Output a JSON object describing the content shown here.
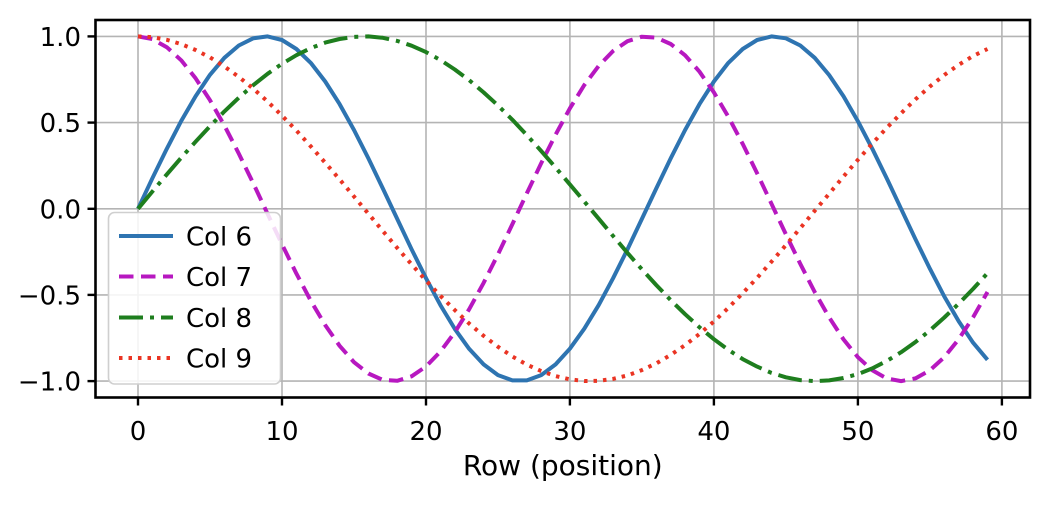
{
  "chart_data": {
    "type": "line",
    "title": "",
    "xlabel": "Row (position)",
    "ylabel": "",
    "grid": true,
    "xlim": [
      -2.95,
      61.95
    ],
    "ylim": [
      -1.095,
      1.095
    ],
    "xticks": [
      0,
      10,
      20,
      30,
      40,
      50,
      60
    ],
    "xtick_labels": [
      "0",
      "10",
      "20",
      "30",
      "40",
      "50",
      "60"
    ],
    "yticks": [
      -1.0,
      -0.5,
      0.0,
      0.5,
      1.0
    ],
    "ytick_labels": [
      "−1.0",
      "−0.5",
      "0.0",
      "0.5",
      "1.0"
    ],
    "grid_color": "#b4b4b4",
    "axis_color": "#000000",
    "legend": {
      "location": "lower left",
      "border_color": "#cfcfcf",
      "entries": [
        "Col 6",
        "Col 7",
        "Col 8",
        "Col 9"
      ]
    },
    "x": [
      0,
      1,
      2,
      3,
      4,
      5,
      6,
      7,
      8,
      9,
      10,
      11,
      12,
      13,
      14,
      15,
      16,
      17,
      18,
      19,
      20,
      21,
      22,
      23,
      24,
      25,
      26,
      27,
      28,
      29,
      30,
      31,
      32,
      33,
      34,
      35,
      36,
      37,
      38,
      39,
      40,
      41,
      42,
      43,
      44,
      45,
      46,
      47,
      48,
      49,
      50,
      51,
      52,
      53,
      54,
      55,
      56,
      57,
      58,
      59
    ],
    "series": [
      {
        "name": "Col 6",
        "color": "#2e74b1",
        "linestyle": "solid",
        "values": [
          0.0,
          0.177,
          0.348,
          0.509,
          0.653,
          0.777,
          0.876,
          0.947,
          0.989,
          1.0,
          0.979,
          0.927,
          0.846,
          0.738,
          0.607,
          0.457,
          0.292,
          0.118,
          -0.059,
          -0.235,
          -0.403,
          -0.559,
          -0.697,
          -0.813,
          -0.903,
          -0.965,
          -0.996,
          -0.996,
          -0.965,
          -0.903,
          -0.812,
          -0.696,
          -0.559,
          -0.403,
          -0.235,
          -0.059,
          0.118,
          0.292,
          0.457,
          0.607,
          0.738,
          0.846,
          0.927,
          0.979,
          1.0,
          0.989,
          0.947,
          0.876,
          0.776,
          0.653,
          0.508,
          0.348,
          0.177,
          0.0,
          -0.177,
          -0.348,
          -0.509,
          -0.653,
          -0.777,
          -0.876
        ]
      },
      {
        "name": "Col 7",
        "color": "#b718c0",
        "linestyle": "dashed",
        "values": [
          1.0,
          0.984,
          0.937,
          0.861,
          0.757,
          0.63,
          0.483,
          0.32,
          0.148,
          -0.03,
          -0.206,
          -0.376,
          -0.534,
          -0.675,
          -0.795,
          -0.89,
          -0.956,
          -0.993,
          -0.998,
          -0.972,
          -0.915,
          -0.829,
          -0.717,
          -0.583,
          -0.43,
          -0.264,
          -0.089,
          0.089,
          0.264,
          0.43,
          0.583,
          0.718,
          0.829,
          0.915,
          0.972,
          0.998,
          0.993,
          0.956,
          0.89,
          0.795,
          0.675,
          0.534,
          0.376,
          0.206,
          0.029,
          -0.148,
          -0.32,
          -0.483,
          -0.63,
          -0.758,
          -0.861,
          -0.937,
          -0.984,
          -1.0,
          -0.984,
          -0.937,
          -0.861,
          -0.757,
          -0.63,
          -0.483
        ]
      },
      {
        "name": "Col 8",
        "color": "#1e7e1e",
        "linestyle": "dashdot",
        "values": [
          0.0,
          0.1,
          0.199,
          0.296,
          0.389,
          0.479,
          0.565,
          0.644,
          0.717,
          0.783,
          0.841,
          0.891,
          0.932,
          0.964,
          0.985,
          0.997,
          1.0,
          0.992,
          0.974,
          0.946,
          0.909,
          0.863,
          0.808,
          0.746,
          0.675,
          0.599,
          0.516,
          0.427,
          0.335,
          0.239,
          0.141,
          0.042,
          -0.058,
          -0.158,
          -0.256,
          -0.351,
          -0.443,
          -0.53,
          -0.612,
          -0.688,
          -0.757,
          -0.818,
          -0.872,
          -0.916,
          -0.952,
          -0.978,
          -0.994,
          -1.0,
          -0.996,
          -0.982,
          -0.959,
          -0.926,
          -0.883,
          -0.832,
          -0.773,
          -0.706,
          -0.631,
          -0.551,
          -0.465,
          -0.374
        ]
      },
      {
        "name": "Col 9",
        "color": "#ea3423",
        "linestyle": "dotted",
        "values": [
          1.0,
          0.995,
          0.98,
          0.955,
          0.921,
          0.878,
          0.825,
          0.765,
          0.697,
          0.622,
          0.54,
          0.454,
          0.362,
          0.267,
          0.17,
          0.071,
          -0.029,
          -0.129,
          -0.227,
          -0.323,
          -0.416,
          -0.505,
          -0.588,
          -0.666,
          -0.737,
          -0.801,
          -0.857,
          -0.904,
          -0.942,
          -0.971,
          -0.99,
          -0.999,
          -0.998,
          -0.987,
          -0.967,
          -0.936,
          -0.897,
          -0.848,
          -0.791,
          -0.726,
          -0.654,
          -0.575,
          -0.49,
          -0.401,
          -0.307,
          -0.211,
          -0.112,
          -0.012,
          0.087,
          0.187,
          0.284,
          0.378,
          0.469,
          0.554,
          0.635,
          0.709,
          0.776,
          0.835,
          0.886,
          0.927
        ]
      }
    ]
  }
}
